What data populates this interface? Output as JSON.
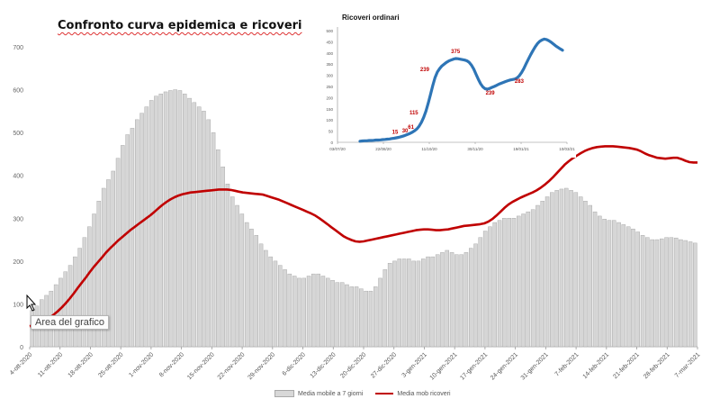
{
  "chart_data": [
    {
      "type": "bar",
      "title": "Confronto curva epidemica e ricoveri",
      "ylim": [
        0,
        700
      ],
      "yticks": [
        0,
        100,
        200,
        300,
        400,
        500,
        600,
        700
      ],
      "x_tick_labels": [
        "4-ott-2020",
        "11-ott-2020",
        "18-ott-2020",
        "25-ott-2020",
        "1-nov-2020",
        "8-nov-2020",
        "15-nov-2020",
        "22-nov-2020",
        "29-nov-2020",
        "6-dic-2020",
        "13-dic-2020",
        "20-dic-2020",
        "27-dic-2020",
        "3-gen-2021",
        "10-gen-2021",
        "17-gen-2021",
        "24-gen-2021",
        "31-gen-2021",
        "7-feb-2021",
        "14-feb-2021",
        "21-feb-2021",
        "28-feb-2021",
        "7-mar-2021"
      ],
      "series": [
        {
          "name": "Media mobile a 7 giorni",
          "kind": "bar",
          "color": "#d6d6d6",
          "values": [
            85,
            95,
            110,
            120,
            130,
            145,
            160,
            175,
            190,
            210,
            230,
            255,
            280,
            310,
            340,
            370,
            390,
            410,
            440,
            470,
            495,
            510,
            530,
            545,
            560,
            575,
            585,
            590,
            595,
            598,
            600,
            598,
            590,
            580,
            570,
            560,
            550,
            530,
            500,
            460,
            420,
            380,
            350,
            330,
            310,
            290,
            275,
            260,
            240,
            225,
            210,
            200,
            190,
            180,
            170,
            165,
            160,
            160,
            165,
            170,
            170,
            165,
            160,
            155,
            150,
            150,
            145,
            140,
            140,
            135,
            130,
            130,
            140,
            160,
            180,
            195,
            200,
            205,
            205,
            205,
            200,
            200,
            205,
            210,
            210,
            215,
            220,
            225,
            220,
            215,
            215,
            220,
            230,
            240,
            255,
            270,
            280,
            290,
            295,
            300,
            300,
            300,
            305,
            310,
            315,
            320,
            330,
            340,
            350,
            360,
            365,
            368,
            370,
            365,
            360,
            350,
            340,
            330,
            315,
            305,
            298,
            295,
            295,
            290,
            285,
            280,
            275,
            268,
            260,
            255,
            250,
            250,
            252,
            255,
            255,
            254,
            250,
            248,
            245,
            242
          ]
        },
        {
          "name": "Media mob ricoveri",
          "kind": "line",
          "color": "#c00000",
          "values": [
            48,
            50,
            53,
            57,
            62,
            68,
            75,
            83,
            92,
            102,
            113,
            125,
            138,
            150,
            162,
            175,
            187,
            198,
            209,
            220,
            230,
            239,
            248,
            256,
            264,
            272,
            279,
            286,
            293,
            300,
            307,
            315,
            323,
            331,
            338,
            344,
            349,
            353,
            356,
            358,
            360,
            361,
            362,
            363,
            364,
            365,
            366,
            367,
            367,
            367,
            366,
            364,
            362,
            360,
            359,
            358,
            357,
            356,
            355,
            352,
            349,
            346,
            343,
            339,
            335,
            331,
            327,
            323,
            319,
            315,
            311,
            306,
            300,
            293,
            286,
            279,
            272,
            265,
            258,
            253,
            249,
            246,
            245,
            246,
            248,
            250,
            252,
            254,
            256,
            258,
            260,
            262,
            264,
            266,
            268,
            270,
            272,
            273,
            274,
            274,
            273,
            272,
            272,
            273,
            274,
            276,
            278,
            280,
            282,
            283,
            284,
            285,
            286,
            288,
            292,
            298,
            306,
            315,
            324,
            332,
            338,
            343,
            348,
            352,
            356,
            360,
            365,
            371,
            378,
            386,
            395,
            405,
            415,
            425,
            433,
            440,
            446,
            452,
            457,
            461,
            464,
            466,
            467,
            468,
            468,
            468,
            467,
            466,
            465,
            464,
            462,
            460,
            456,
            451,
            447,
            444,
            441,
            440,
            439,
            440,
            441,
            441,
            438,
            434,
            431,
            430,
            430
          ]
        }
      ]
    },
    {
      "type": "line",
      "title": "Ricoveri ordinari",
      "ylim": [
        0,
        500
      ],
      "yticks": [
        0,
        50,
        100,
        150,
        200,
        250,
        300,
        350,
        400,
        450,
        500
      ],
      "x_tick_labels": [
        "03/07/20",
        "22/08/20",
        "11/10/20",
        "30/11/20",
        "19/01/21",
        "10/03/21"
      ],
      "series": [
        {
          "name": "",
          "color": "#2e75b6",
          "values": [
            5,
            6,
            7,
            7,
            8,
            8,
            9,
            10,
            10,
            11,
            12,
            13,
            14,
            15,
            17,
            18,
            20,
            22,
            25,
            28,
            32,
            36,
            40,
            45,
            52,
            60,
            72,
            90,
            112,
            140,
            175,
            215,
            255,
            290,
            315,
            330,
            342,
            350,
            358,
            364,
            368,
            372,
            375,
            374,
            372,
            370,
            368,
            365,
            358,
            345,
            328,
            305,
            282,
            262,
            248,
            240,
            238,
            241,
            246,
            250,
            255,
            260,
            264,
            268,
            272,
            276,
            279,
            281,
            283,
            288,
            298,
            312,
            330,
            352,
            372,
            392,
            410,
            428,
            442,
            452,
            458,
            462,
            460,
            455,
            448,
            440,
            432,
            425,
            418,
            412
          ]
        }
      ],
      "annotations": [
        "15",
        "30",
        "61",
        "115",
        "239",
        "375",
        "239",
        "283"
      ]
    }
  ],
  "tooltip": "Area del grafico",
  "legend": [
    {
      "label": "Media mobile a 7 giorni",
      "kind": "bar"
    },
    {
      "label": "Media mob ricoveri",
      "kind": "line"
    }
  ]
}
